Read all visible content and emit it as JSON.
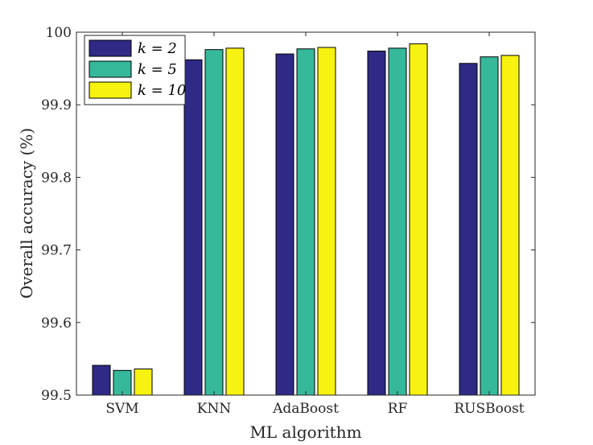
{
  "chart_data": {
    "type": "bar",
    "xlabel": "ML algorithm",
    "ylabel": "Overall accuracy (%)",
    "ylim": [
      99.5,
      100
    ],
    "yticks": [
      99.5,
      99.6,
      99.7,
      99.8,
      99.9,
      100
    ],
    "ytick_labels": [
      "99.5",
      "99.6",
      "99.7",
      "99.8",
      "99.9",
      "100"
    ],
    "grid": false,
    "legend_position": "top-left",
    "categories": [
      "SVM",
      "KNN",
      "AdaBoost",
      "RF",
      "RUSBoost"
    ],
    "series": [
      {
        "name": "k = 2",
        "color": "#2e2a86",
        "values": [
          99.541,
          99.962,
          99.97,
          99.974,
          99.957
        ]
      },
      {
        "name": "k = 5",
        "color": "#35b99a",
        "values": [
          99.534,
          99.976,
          99.977,
          99.978,
          99.966
        ]
      },
      {
        "name": "k = 10",
        "color": "#f7f20f",
        "values": [
          99.536,
          99.978,
          99.979,
          99.984,
          99.968
        ]
      }
    ]
  }
}
